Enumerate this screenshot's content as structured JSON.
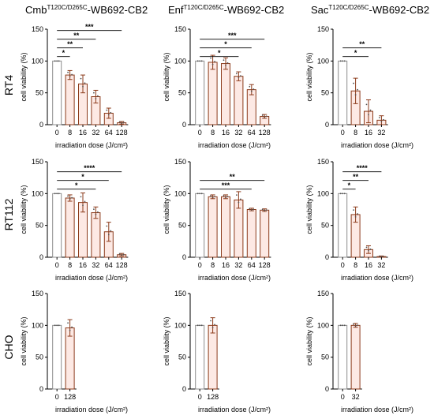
{
  "columns": [
    {
      "title_main": "Cmb",
      "title_sup": "T120C/D265C",
      "title_rest": "-WB692-CB2"
    },
    {
      "title_main": "Enf",
      "title_sup": "T120C/D265C",
      "title_rest": "-WB692-CB2"
    },
    {
      "title_main": "Sac",
      "title_sup": "T120C/D265C",
      "title_rest": "-WB692-CB2"
    }
  ],
  "rows": [
    "RT4",
    "RT112",
    "CHO"
  ],
  "colors": {
    "reference_bar": "#8c8c8c",
    "treated_bar": "#8b3a1a",
    "bar_fill": "#fde9e4",
    "reference_fill": "#ffffff"
  },
  "chart_data": [
    {
      "id": "RT4-Cmb",
      "type": "bar",
      "categories": [
        "0",
        "8",
        "16",
        "32",
        "64",
        "128"
      ],
      "values": [
        100,
        78,
        64,
        44,
        18,
        3
      ],
      "errors": [
        0,
        7,
        14,
        10,
        8,
        2
      ],
      "ylabel": "cell viability (%)",
      "xlabel": "irradiation dose (J/cm²)",
      "ylim": [
        0,
        150
      ],
      "yticks": [
        "0",
        "50",
        "100",
        "150"
      ],
      "significance": [
        {
          "from": 0,
          "to": 1,
          "label": "*"
        },
        {
          "from": 0,
          "to": 2,
          "label": "**"
        },
        {
          "from": 0,
          "to": 3,
          "label": "**"
        },
        {
          "from": 0,
          "to": 5,
          "label": "***"
        }
      ]
    },
    {
      "id": "RT4-Enf",
      "type": "bar",
      "categories": [
        "0",
        "8",
        "16",
        "32",
        "64",
        "128"
      ],
      "values": [
        100,
        98,
        96,
        76,
        55,
        13
      ],
      "errors": [
        0,
        11,
        9,
        7,
        8,
        3
      ],
      "ylabel": "cell viability (%)",
      "xlabel": "irradiation dose (J/cm²)",
      "ylim": [
        0,
        150
      ],
      "yticks": [
        "0",
        "50",
        "100",
        "150"
      ],
      "significance": [
        {
          "from": 0,
          "to": 3,
          "label": "*"
        },
        {
          "from": 0,
          "to": 4,
          "label": "*"
        },
        {
          "from": 0,
          "to": 5,
          "label": "***"
        }
      ]
    },
    {
      "id": "RT4-Sac",
      "type": "bar",
      "categories": [
        "0",
        "8",
        "16",
        "32"
      ],
      "values": [
        100,
        53,
        21,
        7
      ],
      "errors": [
        0,
        20,
        18,
        7
      ],
      "ylabel": "cell viability (%)",
      "xlabel": "irradiation dose (J/cm²)",
      "ylim": [
        0,
        150
      ],
      "yticks": [
        "0",
        "50",
        "100",
        "150"
      ],
      "significance": [
        {
          "from": 0,
          "to": 2,
          "label": "*"
        },
        {
          "from": 0,
          "to": 3,
          "label": "**"
        }
      ]
    },
    {
      "id": "RT112-Cmb",
      "type": "bar",
      "categories": [
        "0",
        "8",
        "16",
        "32",
        "64",
        "128"
      ],
      "values": [
        100,
        93,
        86,
        70,
        40,
        4
      ],
      "errors": [
        0,
        5,
        15,
        9,
        15,
        2
      ],
      "ylabel": "cell viability (%)",
      "xlabel": "irradiation dose (J/cm²)",
      "ylim": [
        0,
        150
      ],
      "yticks": [
        "0",
        "50",
        "100",
        "150"
      ],
      "significance": [
        {
          "from": 0,
          "to": 3,
          "label": "*"
        },
        {
          "from": 0,
          "to": 4,
          "label": "*"
        },
        {
          "from": 0,
          "to": 5,
          "label": "****"
        }
      ]
    },
    {
      "id": "RT112-Enf",
      "type": "bar",
      "categories": [
        "0",
        "8",
        "16",
        "32",
        "64",
        "128"
      ],
      "values": [
        100,
        95,
        95,
        90,
        75,
        74
      ],
      "errors": [
        0,
        3,
        3,
        13,
        2,
        2
      ],
      "ylabel": "cell viability (%)",
      "xlabel": "irradiation dose (J/cm²)",
      "ylim": [
        0,
        150
      ],
      "yticks": [
        "0",
        "50",
        "100",
        "150"
      ],
      "significance": [
        {
          "from": 0,
          "to": 4,
          "label": "***"
        },
        {
          "from": 0,
          "to": 5,
          "label": "**"
        }
      ]
    },
    {
      "id": "RT112-Sac",
      "type": "bar",
      "categories": [
        "0",
        "8",
        "16",
        "32"
      ],
      "values": [
        100,
        67,
        12,
        1
      ],
      "errors": [
        0,
        12,
        6,
        1
      ],
      "ylabel": "cell viability (%)",
      "xlabel": "irradiation dose (J/cm²)",
      "ylim": [
        0,
        150
      ],
      "yticks": [
        "0",
        "50",
        "100",
        "150"
      ],
      "significance": [
        {
          "from": 0,
          "to": 1,
          "label": "*"
        },
        {
          "from": 0,
          "to": 2,
          "label": "**"
        },
        {
          "from": 0,
          "to": 3,
          "label": "****"
        }
      ]
    },
    {
      "id": "CHO-Cmb",
      "type": "bar",
      "categories": [
        "0",
        "128"
      ],
      "values": [
        100,
        96
      ],
      "errors": [
        0,
        13
      ],
      "ylabel": "cell viability (%)",
      "xlabel": "irradiation dose (J/cm²)",
      "ylim": [
        0,
        150
      ],
      "yticks": [
        "0",
        "50",
        "100",
        "150"
      ],
      "significance": []
    },
    {
      "id": "CHO-Enf",
      "type": "bar",
      "categories": [
        "0",
        "128"
      ],
      "values": [
        100,
        100
      ],
      "errors": [
        0,
        12
      ],
      "ylabel": "cell viability (%)",
      "xlabel": "irradiation dose (J/cm²)",
      "ylim": [
        0,
        150
      ],
      "yticks": [
        "0",
        "50",
        "100",
        "150"
      ],
      "significance": []
    },
    {
      "id": "CHO-Sac",
      "type": "bar",
      "categories": [
        "0",
        "32"
      ],
      "values": [
        100,
        100
      ],
      "errors": [
        0,
        3
      ],
      "ylabel": "cell viability (%)",
      "xlabel": "irradiation dose (J/cm²)",
      "ylim": [
        0,
        150
      ],
      "yticks": [
        "0",
        "50",
        "100",
        "150"
      ],
      "significance": []
    }
  ]
}
